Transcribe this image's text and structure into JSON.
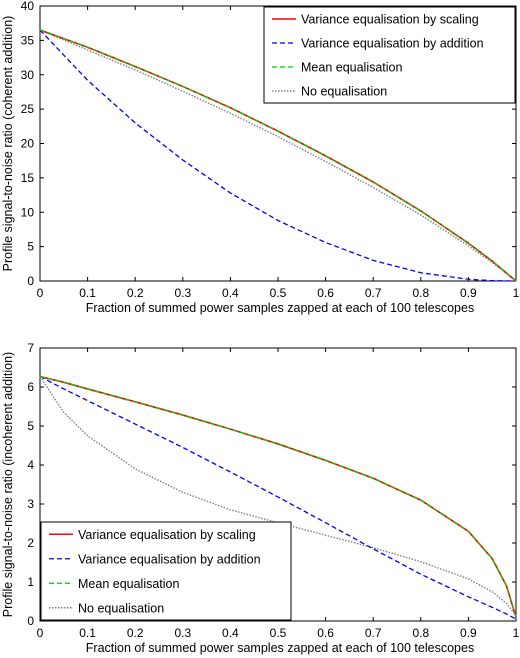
{
  "chart_data": [
    {
      "type": "line",
      "title": "",
      "xlabel": "Fraction of summed power samples zapped at each of 100 telescopes",
      "ylabel": "Profile signal-to-noise ratio (coherent addition)",
      "xlim": [
        0,
        1
      ],
      "ylim": [
        0,
        40
      ],
      "xticks": [
        "0",
        "0.1",
        "0.2",
        "0.3",
        "0.4",
        "0.5",
        "0.6",
        "0.7",
        "0.8",
        "0.9",
        "1"
      ],
      "yticks": [
        "0",
        "5",
        "10",
        "15",
        "20",
        "25",
        "30",
        "35",
        "40"
      ],
      "grid": false,
      "legend_position": "top-right",
      "x": [
        0,
        0.1,
        0.2,
        0.3,
        0.4,
        0.5,
        0.6,
        0.7,
        0.8,
        0.9,
        0.95,
        1
      ],
      "series": [
        {
          "name": "Variance equalisation by scaling",
          "color": "#ff0000",
          "style": "solid",
          "values": [
            36.5,
            34.0,
            31.2,
            28.3,
            25.2,
            21.8,
            18.2,
            14.4,
            10.2,
            5.5,
            2.9,
            0
          ]
        },
        {
          "name": "Variance equalisation by addition",
          "color": "#0000ff",
          "style": "dashed",
          "values": [
            36.5,
            29.2,
            23.0,
            17.6,
            12.8,
            8.8,
            5.6,
            3.0,
            1.2,
            0.25,
            0.05,
            0
          ]
        },
        {
          "name": "Mean equalisation",
          "color": "#00cc00",
          "style": "dashed",
          "values": [
            36.5,
            34.0,
            31.2,
            28.3,
            25.2,
            21.8,
            18.2,
            14.4,
            10.2,
            5.5,
            2.9,
            0
          ]
        },
        {
          "name": "No equalisation",
          "color": "#808080",
          "style": "dotted",
          "values": [
            36.5,
            33.6,
            30.7,
            27.6,
            24.4,
            21.0,
            17.4,
            13.6,
            9.6,
            5.1,
            2.7,
            0
          ]
        }
      ]
    },
    {
      "type": "line",
      "title": "",
      "xlabel": "Fraction of summed power samples zapped at each of 100 telescopes",
      "ylabel": "Profile signal-to-noise ratio (incoherent addition)",
      "xlim": [
        0,
        1
      ],
      "ylim": [
        0,
        7
      ],
      "xticks": [
        "0",
        "0.1",
        "0.2",
        "0.3",
        "0.4",
        "0.5",
        "0.6",
        "0.7",
        "0.8",
        "0.9",
        "1"
      ],
      "yticks": [
        "0",
        "1",
        "2",
        "3",
        "4",
        "5",
        "6",
        "7"
      ],
      "grid": false,
      "legend_position": "bottom-left",
      "x": [
        0,
        0.05,
        0.1,
        0.2,
        0.3,
        0.4,
        0.5,
        0.6,
        0.7,
        0.8,
        0.9,
        0.95,
        0.98,
        1
      ],
      "series": [
        {
          "name": "Variance equalisation by scaling",
          "color": "#ff0000",
          "style": "solid",
          "values": [
            6.27,
            6.12,
            5.95,
            5.62,
            5.28,
            4.92,
            4.54,
            4.12,
            3.66,
            3.1,
            2.3,
            1.6,
            0.9,
            0.1
          ]
        },
        {
          "name": "Variance equalisation by addition",
          "color": "#0000ff",
          "style": "dashed",
          "values": [
            6.27,
            5.95,
            5.65,
            5.05,
            4.45,
            3.82,
            3.18,
            2.52,
            1.85,
            1.2,
            0.62,
            0.35,
            0.18,
            0.05
          ]
        },
        {
          "name": "Mean equalisation",
          "color": "#00cc00",
          "style": "dashed",
          "values": [
            6.27,
            6.12,
            5.95,
            5.62,
            5.28,
            4.92,
            4.54,
            4.12,
            3.66,
            3.1,
            2.3,
            1.6,
            0.9,
            0.1
          ]
        },
        {
          "name": "No equalisation",
          "color": "#808080",
          "style": "dotted",
          "values": [
            6.27,
            5.35,
            4.75,
            3.9,
            3.3,
            2.85,
            2.52,
            2.2,
            1.88,
            1.52,
            1.08,
            0.75,
            0.45,
            0.15
          ]
        }
      ]
    }
  ]
}
